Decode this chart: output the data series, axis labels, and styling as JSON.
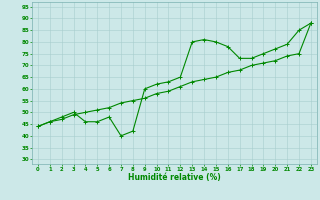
{
  "title": "",
  "xlabel": "Humidité relative (%)",
  "ylabel": "",
  "xlim": [
    -0.5,
    23.5
  ],
  "ylim": [
    28,
    97
  ],
  "yticks": [
    30,
    35,
    40,
    45,
    50,
    55,
    60,
    65,
    70,
    75,
    80,
    85,
    90,
    95
  ],
  "xticks": [
    0,
    1,
    2,
    3,
    4,
    5,
    6,
    7,
    8,
    9,
    10,
    11,
    12,
    13,
    14,
    15,
    16,
    17,
    18,
    19,
    20,
    21,
    22,
    23
  ],
  "bg_color": "#cce8e8",
  "line_color": "#008800",
  "marker": "+",
  "data_x": [
    0,
    1,
    2,
    3,
    4,
    5,
    6,
    7,
    8,
    9,
    10,
    11,
    12,
    13,
    14,
    15,
    16,
    17,
    18,
    19,
    20,
    21,
    22,
    23
  ],
  "data_y": [
    44,
    46,
    48,
    50,
    46,
    46,
    48,
    40,
    42,
    60,
    62,
    63,
    65,
    80,
    81,
    80,
    78,
    73,
    73,
    75,
    77,
    79,
    85,
    88
  ],
  "trend_y": [
    44,
    46,
    47,
    49,
    50,
    51,
    52,
    54,
    55,
    56,
    58,
    59,
    61,
    63,
    64,
    65,
    67,
    68,
    70,
    71,
    72,
    74,
    75,
    88
  ]
}
